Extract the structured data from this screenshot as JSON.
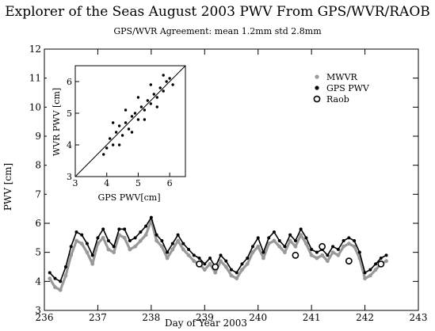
{
  "chart_data": [
    {
      "type": "scatter",
      "title": "Explorer of the Seas August 2003 PWV From GPS/WVR/RAOB",
      "subtitle": "GPS/WVR Agreement: mean 1.2mm std 2.8mm",
      "xlabel": "Day of Year 2003",
      "ylabel": "PWV [cm]",
      "xlim": [
        236,
        243
      ],
      "ylim": [
        3,
        12
      ],
      "xticks": [
        236,
        237,
        238,
        239,
        240,
        241,
        242,
        243
      ],
      "yticks": [
        3,
        4,
        5,
        6,
        7,
        8,
        9,
        10,
        11,
        12
      ],
      "legend_position": "top-right",
      "series": [
        {
          "name": "MWVR",
          "color": "#999999",
          "marker": "small-dot",
          "x": [
            236.1,
            236.2,
            236.3,
            236.4,
            236.5,
            236.6,
            236.7,
            236.8,
            236.9,
            237.0,
            237.1,
            237.2,
            237.3,
            237.4,
            237.5,
            237.6,
            237.7,
            237.8,
            237.9,
            238.0,
            238.1,
            238.2,
            238.3,
            238.4,
            238.5,
            238.6,
            238.7,
            238.8,
            238.9,
            239.0,
            239.1,
            239.2,
            239.3,
            239.4,
            239.5,
            239.6,
            239.7,
            239.8,
            239.9,
            240.0,
            240.1,
            240.2,
            240.3,
            240.4,
            240.5,
            240.6,
            240.7,
            240.8,
            240.9,
            241.0,
            241.1,
            241.2,
            241.3,
            241.4,
            241.5,
            241.6,
            241.7,
            241.8,
            241.9,
            242.0,
            242.1,
            242.2,
            242.3,
            242.4
          ],
          "y": [
            4.1,
            3.8,
            3.7,
            4.2,
            4.9,
            5.4,
            5.3,
            5.0,
            4.6,
            5.3,
            5.5,
            5.1,
            5.0,
            5.6,
            5.5,
            5.1,
            5.2,
            5.4,
            5.6,
            6.1,
            5.4,
            5.2,
            4.8,
            5.1,
            5.4,
            5.1,
            4.9,
            4.7,
            4.6,
            4.4,
            4.6,
            4.3,
            4.7,
            4.5,
            4.2,
            4.1,
            4.4,
            4.6,
            5.0,
            5.2,
            4.8,
            5.3,
            5.4,
            5.2,
            5.0,
            5.4,
            5.2,
            5.6,
            5.3,
            4.9,
            4.8,
            4.9,
            4.7,
            5.0,
            4.9,
            5.2,
            5.3,
            5.2,
            4.8,
            4.1,
            4.2,
            4.4,
            4.6,
            4.7
          ]
        },
        {
          "name": "GPS PWV",
          "color": "#000000",
          "marker": "dot",
          "x": [
            236.1,
            236.2,
            236.3,
            236.4,
            236.5,
            236.6,
            236.7,
            236.8,
            236.9,
            237.0,
            237.1,
            237.2,
            237.3,
            237.4,
            237.5,
            237.6,
            237.7,
            237.8,
            237.9,
            238.0,
            238.1,
            238.2,
            238.3,
            238.4,
            238.5,
            238.6,
            238.7,
            238.8,
            238.9,
            239.0,
            239.1,
            239.2,
            239.3,
            239.4,
            239.5,
            239.6,
            239.7,
            239.8,
            239.9,
            240.0,
            240.1,
            240.2,
            240.3,
            240.4,
            240.5,
            240.6,
            240.7,
            240.8,
            240.9,
            241.0,
            241.1,
            241.2,
            241.3,
            241.4,
            241.5,
            241.6,
            241.7,
            241.8,
            241.9,
            242.0,
            242.1,
            242.2,
            242.3,
            242.4
          ],
          "y": [
            4.3,
            4.1,
            4.0,
            4.5,
            5.2,
            5.7,
            5.6,
            5.3,
            4.9,
            5.5,
            5.8,
            5.4,
            5.2,
            5.8,
            5.8,
            5.4,
            5.5,
            5.7,
            5.9,
            6.2,
            5.6,
            5.4,
            5.0,
            5.3,
            5.6,
            5.3,
            5.1,
            4.9,
            4.8,
            4.6,
            4.8,
            4.5,
            4.9,
            4.7,
            4.4,
            4.3,
            4.6,
            4.8,
            5.2,
            5.5,
            5.0,
            5.5,
            5.7,
            5.4,
            5.2,
            5.6,
            5.4,
            5.8,
            5.5,
            5.1,
            5.0,
            5.1,
            4.9,
            5.2,
            5.1,
            5.4,
            5.5,
            5.4,
            5.0,
            4.3,
            4.4,
            4.6,
            4.8,
            4.9
          ]
        },
        {
          "name": "Raob",
          "color": "#000000",
          "marker": "open-circle",
          "x": [
            238.9,
            239.2,
            240.7,
            241.2,
            241.7,
            242.3
          ],
          "y": [
            4.6,
            4.5,
            4.9,
            5.2,
            4.7,
            4.6
          ]
        }
      ]
    },
    {
      "type": "scatter",
      "xlabel": "GPS PWV[cm]",
      "ylabel": "WVR PWV [cm]",
      "xlim": [
        3,
        6.5
      ],
      "ylim": [
        3,
        6.5
      ],
      "xticks": [
        3,
        4,
        5,
        6
      ],
      "yticks": [
        3,
        4,
        5,
        6
      ],
      "reference_line": "1:1",
      "points": [
        [
          3.9,
          3.7
        ],
        [
          4.0,
          3.9
        ],
        [
          4.1,
          4.2
        ],
        [
          4.2,
          4.0
        ],
        [
          4.3,
          4.4
        ],
        [
          4.4,
          4.6
        ],
        [
          4.5,
          4.3
        ],
        [
          4.6,
          4.7
        ],
        [
          4.7,
          4.5
        ],
        [
          4.8,
          4.9
        ],
        [
          4.9,
          5.0
        ],
        [
          5.0,
          4.8
        ],
        [
          5.1,
          5.2
        ],
        [
          5.2,
          5.1
        ],
        [
          5.3,
          5.4
        ],
        [
          5.4,
          5.3
        ],
        [
          5.5,
          5.6
        ],
        [
          5.6,
          5.5
        ],
        [
          5.7,
          5.8
        ],
        [
          5.8,
          5.7
        ],
        [
          5.9,
          6.0
        ],
        [
          6.0,
          6.1
        ],
        [
          4.2,
          4.7
        ],
        [
          4.6,
          5.1
        ],
        [
          5.0,
          5.5
        ],
        [
          5.4,
          5.9
        ],
        [
          5.8,
          6.2
        ],
        [
          4.4,
          4.0
        ],
        [
          4.8,
          4.4
        ],
        [
          5.2,
          4.8
        ],
        [
          5.6,
          5.2
        ],
        [
          6.1,
          5.9
        ]
      ]
    }
  ],
  "legend": {
    "mwvr": "MWVR",
    "gps": "GPS PWV",
    "raob": "Raob"
  }
}
